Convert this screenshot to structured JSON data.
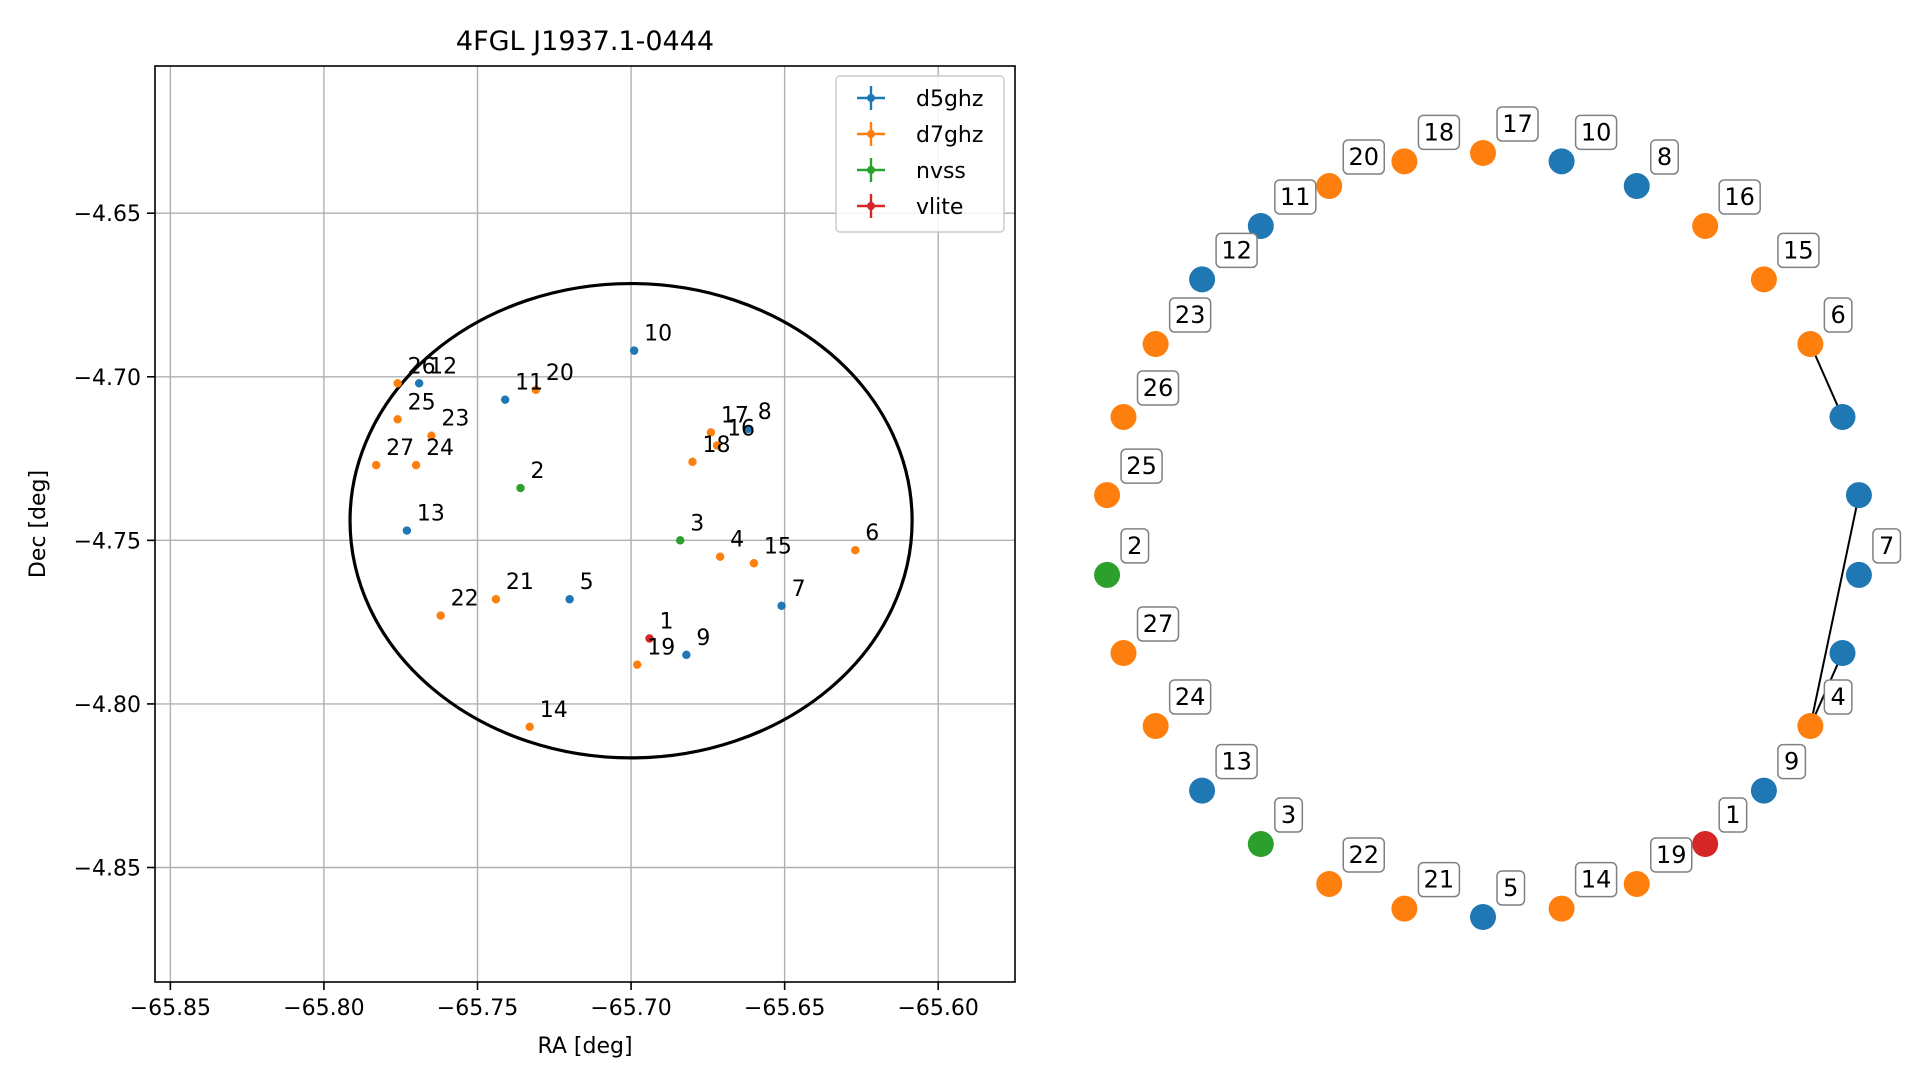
{
  "chart_data": [
    {
      "type": "scatter",
      "title": "4FGL J1937.1-0444",
      "xlabel": "RA [deg]",
      "ylabel": "Dec [deg]",
      "xlim": [
        -65.855,
        -65.575
      ],
      "ylim": [
        -4.885,
        -4.605
      ],
      "xticks": [
        -65.85,
        -65.8,
        -65.75,
        -65.7,
        -65.65,
        -65.6
      ],
      "xtick_labels": [
        "−65.85",
        "−65.80",
        "−65.75",
        "−65.70",
        "−65.65",
        "−65.60"
      ],
      "yticks": [
        -4.65,
        -4.7,
        -4.75,
        -4.8,
        -4.85
      ],
      "ytick_labels": [
        "−4.65",
        "−4.70",
        "−4.75",
        "−4.80",
        "−4.85"
      ],
      "grid": true,
      "legend_position": "top-right",
      "series": [
        {
          "name": "d5ghz",
          "color": "#1f77b4"
        },
        {
          "name": "d7ghz",
          "color": "#ff7f0e"
        },
        {
          "name": "nvss",
          "color": "#2ca02c"
        },
        {
          "name": "vlite",
          "color": "#d62728"
        }
      ],
      "ellipse": {
        "center": [
          -65.7,
          -4.744
        ],
        "ra_semi_axis": 0.0915,
        "dec_semi_axis": 0.0725,
        "color": "#000000"
      },
      "points": [
        {
          "label": "1",
          "series": "vlite",
          "ra": -65.694,
          "dec": -4.78
        },
        {
          "label": "2",
          "series": "nvss",
          "ra": -65.736,
          "dec": -4.734
        },
        {
          "label": "3",
          "series": "nvss",
          "ra": -65.684,
          "dec": -4.75
        },
        {
          "label": "4",
          "series": "d7ghz",
          "ra": -65.671,
          "dec": -4.755
        },
        {
          "label": "5",
          "series": "d5ghz",
          "ra": -65.72,
          "dec": -4.768
        },
        {
          "label": "6",
          "series": "d7ghz",
          "ra": -65.627,
          "dec": -4.753
        },
        {
          "label": "7",
          "series": "d5ghz",
          "ra": -65.651,
          "dec": -4.77
        },
        {
          "label": "8",
          "series": "d5ghz",
          "ra": -65.662,
          "dec": -4.716
        },
        {
          "label": "9",
          "series": "d5ghz",
          "ra": -65.682,
          "dec": -4.785
        },
        {
          "label": "10",
          "series": "d5ghz",
          "ra": -65.699,
          "dec": -4.692
        },
        {
          "label": "11",
          "series": "d5ghz",
          "ra": -65.741,
          "dec": -4.707
        },
        {
          "label": "12",
          "series": "d5ghz",
          "ra": -65.769,
          "dec": -4.702
        },
        {
          "label": "13",
          "series": "d5ghz",
          "ra": -65.773,
          "dec": -4.747
        },
        {
          "label": "14",
          "series": "d7ghz",
          "ra": -65.733,
          "dec": -4.807
        },
        {
          "label": "15",
          "series": "d7ghz",
          "ra": -65.66,
          "dec": -4.757
        },
        {
          "label": "16",
          "series": "d7ghz",
          "ra": -65.672,
          "dec": -4.721
        },
        {
          "label": "17",
          "series": "d7ghz",
          "ra": -65.674,
          "dec": -4.717
        },
        {
          "label": "18",
          "series": "d7ghz",
          "ra": -65.68,
          "dec": -4.726
        },
        {
          "label": "19",
          "series": "d7ghz",
          "ra": -65.698,
          "dec": -4.788
        },
        {
          "label": "20",
          "series": "d7ghz",
          "ra": -65.731,
          "dec": -4.704
        },
        {
          "label": "21",
          "series": "d7ghz",
          "ra": -65.744,
          "dec": -4.768
        },
        {
          "label": "22",
          "series": "d7ghz",
          "ra": -65.762,
          "dec": -4.773
        },
        {
          "label": "23",
          "series": "d7ghz",
          "ra": -65.765,
          "dec": -4.718
        },
        {
          "label": "24",
          "series": "d7ghz",
          "ra": -65.77,
          "dec": -4.727
        },
        {
          "label": "25",
          "series": "d7ghz",
          "ra": -65.776,
          "dec": -4.713
        },
        {
          "label": "26",
          "series": "d7ghz",
          "ra": -65.776,
          "dec": -4.702
        },
        {
          "label": "27",
          "series": "d7ghz",
          "ra": -65.783,
          "dec": -4.727
        }
      ]
    },
    {
      "type": "diagram",
      "kind": "ring network graph",
      "nodes": [
        {
          "label": "10",
          "series": "d5ghz"
        },
        {
          "label": "8",
          "series": "d5ghz"
        },
        {
          "label": "16",
          "series": "d7ghz"
        },
        {
          "label": "15",
          "series": "d7ghz"
        },
        {
          "label": "6",
          "series": "d7ghz"
        },
        {
          "label": "",
          "series": "d5ghz"
        },
        {
          "label": "",
          "series": "d5ghz"
        },
        {
          "label": "7",
          "series": "d5ghz"
        },
        {
          "label": "",
          "series": "d5ghz"
        },
        {
          "label": "4",
          "series": "d7ghz"
        },
        {
          "label": "9",
          "series": "d5ghz"
        },
        {
          "label": "1",
          "series": "vlite"
        },
        {
          "label": "19",
          "series": "d7ghz"
        },
        {
          "label": "14",
          "series": "d7ghz"
        },
        {
          "label": "5",
          "series": "d5ghz"
        },
        {
          "label": "21",
          "series": "d7ghz"
        },
        {
          "label": "22",
          "series": "d7ghz"
        },
        {
          "label": "3",
          "series": "nvss"
        },
        {
          "label": "13",
          "series": "d5ghz"
        },
        {
          "label": "24",
          "series": "d7ghz"
        },
        {
          "label": "27",
          "series": "d7ghz"
        },
        {
          "label": "2",
          "series": "nvss"
        },
        {
          "label": "25",
          "series": "d7ghz"
        },
        {
          "label": "26",
          "series": "d7ghz"
        },
        {
          "label": "23",
          "series": "d7ghz"
        },
        {
          "label": "12",
          "series": "d5ghz"
        },
        {
          "label": "11",
          "series": "d5ghz"
        },
        {
          "label": "20",
          "series": "d7ghz"
        },
        {
          "label": "18",
          "series": "d7ghz"
        },
        {
          "label": "17",
          "series": "d7ghz"
        }
      ],
      "edges": [
        [
          4,
          5
        ],
        [
          6,
          9
        ],
        [
          8,
          9
        ]
      ]
    }
  ]
}
